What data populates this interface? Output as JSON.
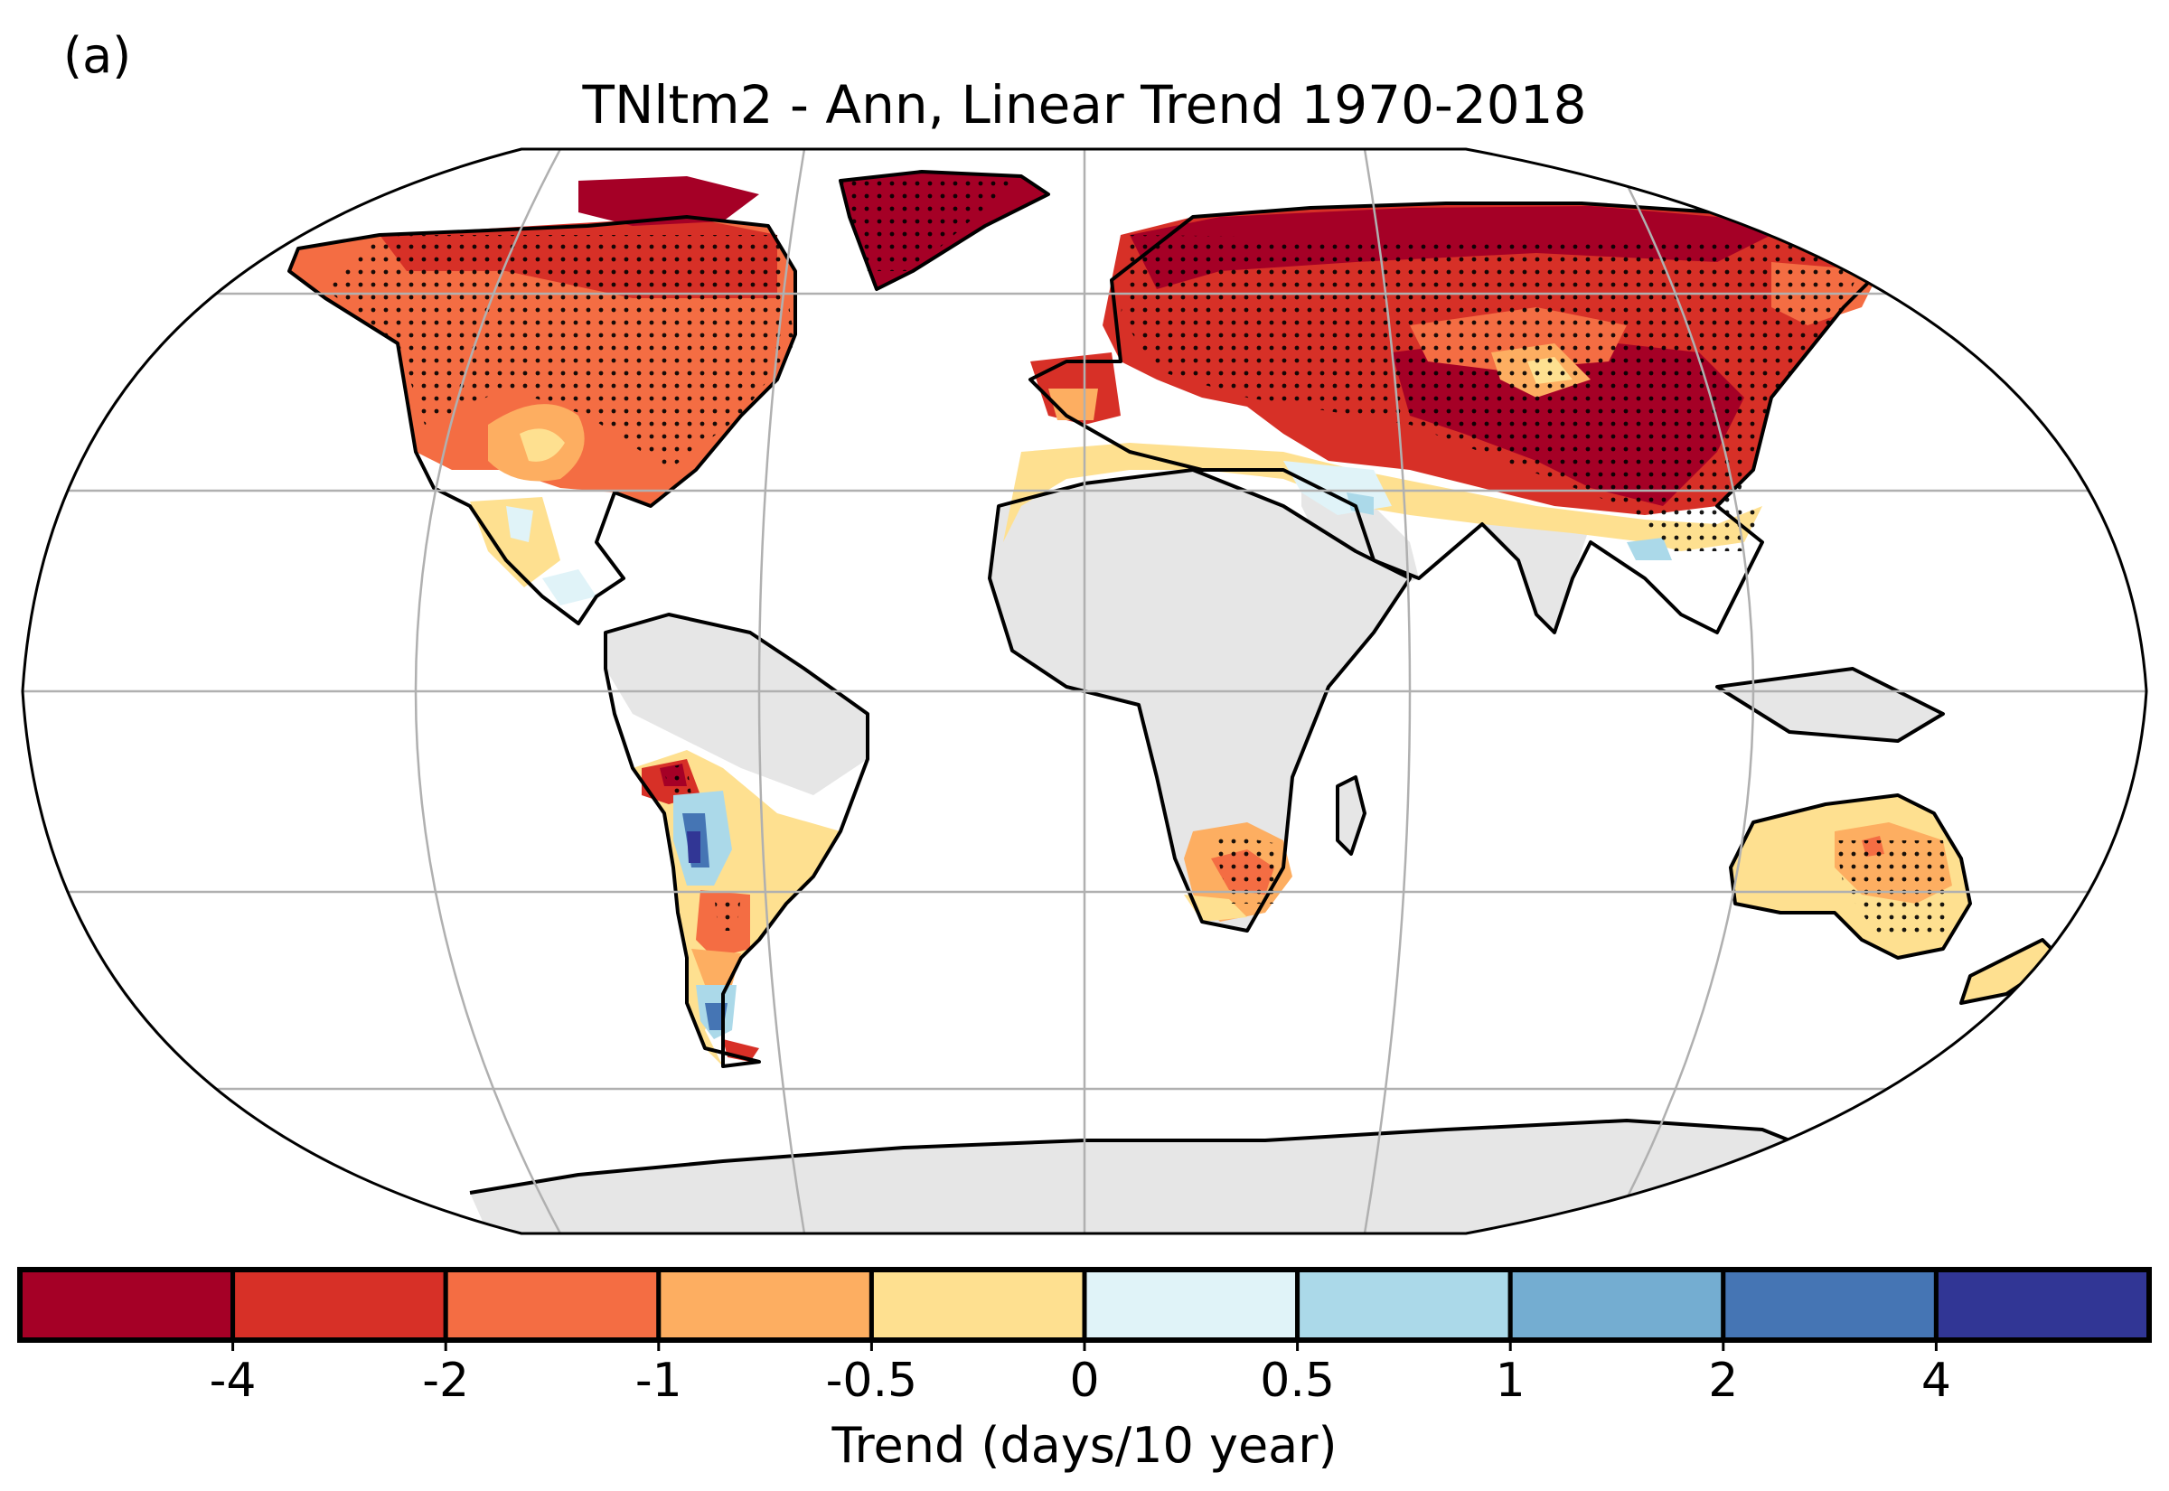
{
  "panel_label": "(a)",
  "title": "TNltm2 - Ann, Linear Trend 1970-2018",
  "colorbar": {
    "label": "Trend (days/10 year)",
    "colors": [
      "#a50026",
      "#d73027",
      "#f46d43",
      "#fdae61",
      "#fee090",
      "#e0f3f8",
      "#abd9e9",
      "#74add1",
      "#4575b4",
      "#313695"
    ],
    "ticks": [
      "-4",
      "-2",
      "-1",
      "-0.5",
      "0",
      "0.5",
      "1",
      "2",
      "4"
    ]
  },
  "map": {
    "projection": "Robinson",
    "no_data_color": "#e6e6e6",
    "gridlines": true,
    "stippling": "significant trends"
  }
}
